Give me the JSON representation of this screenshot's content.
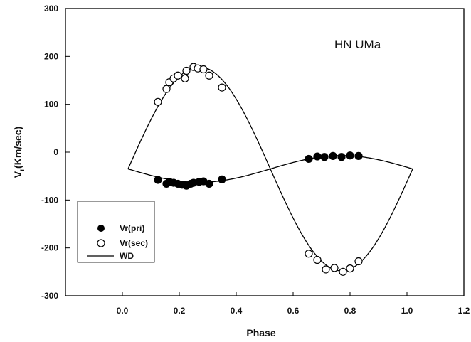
{
  "chart_data": {
    "type": "scatter",
    "title": "",
    "annotation": "HN UMa",
    "xlabel": "Phase",
    "ylabel": "V",
    "ylabel_sub": "r",
    "ylabel_units": "(Km/sec)",
    "xlim": [
      -0.2,
      1.2
    ],
    "ylim": [
      -300,
      300
    ],
    "xticks": [
      0.0,
      0.2,
      0.4,
      0.6,
      0.8,
      1.0,
      1.2
    ],
    "xtick_labels": [
      "0.0",
      "0.2",
      "0.4",
      "0.6",
      "0.8",
      "1.0",
      "1.2"
    ],
    "yticks": [
      -300,
      -200,
      -100,
      0,
      100,
      200,
      300
    ],
    "ytick_labels": [
      "-300",
      "-200",
      "-100",
      "0",
      "100",
      "200",
      "300"
    ],
    "grid": false,
    "legend_position": "bottom-left",
    "series": [
      {
        "name": "Vr(pri)",
        "marker": "filled-circle",
        "color": "#000000",
        "points": [
          [
            0.125,
            -58
          ],
          [
            0.155,
            -66
          ],
          [
            0.165,
            -62
          ],
          [
            0.18,
            -64
          ],
          [
            0.195,
            -66
          ],
          [
            0.21,
            -68
          ],
          [
            0.225,
            -70
          ],
          [
            0.24,
            -66
          ],
          [
            0.25,
            -64
          ],
          [
            0.27,
            -62
          ],
          [
            0.285,
            -61
          ],
          [
            0.305,
            -66
          ],
          [
            0.35,
            -57
          ],
          [
            0.655,
            -14
          ],
          [
            0.685,
            -9
          ],
          [
            0.71,
            -10
          ],
          [
            0.74,
            -8
          ],
          [
            0.77,
            -10
          ],
          [
            0.8,
            -7
          ],
          [
            0.83,
            -8
          ]
        ]
      },
      {
        "name": "Vr(sec)",
        "marker": "open-circle",
        "color": "#000000",
        "points": [
          [
            0.125,
            105
          ],
          [
            0.155,
            132
          ],
          [
            0.165,
            146
          ],
          [
            0.18,
            154
          ],
          [
            0.195,
            160
          ],
          [
            0.22,
            154
          ],
          [
            0.225,
            170
          ],
          [
            0.25,
            178
          ],
          [
            0.265,
            175
          ],
          [
            0.285,
            173
          ],
          [
            0.305,
            160
          ],
          [
            0.35,
            135
          ],
          [
            0.655,
            -212
          ],
          [
            0.685,
            -225
          ],
          [
            0.715,
            -245
          ],
          [
            0.745,
            -242
          ],
          [
            0.775,
            -250
          ],
          [
            0.8,
            -243
          ],
          [
            0.83,
            -228
          ]
        ]
      },
      {
        "name": "WD",
        "marker": "line",
        "color": "#000000",
        "curves": [
          {
            "label": "primary",
            "gamma": -35,
            "K": 28,
            "phase0": 0.02,
            "x_range": [
              0.02,
              1.02
            ]
          },
          {
            "label": "secondary",
            "gamma": -35,
            "K": 213,
            "phase0": 0.02,
            "x_range": [
              0.02,
              1.02
            ]
          }
        ]
      }
    ]
  }
}
